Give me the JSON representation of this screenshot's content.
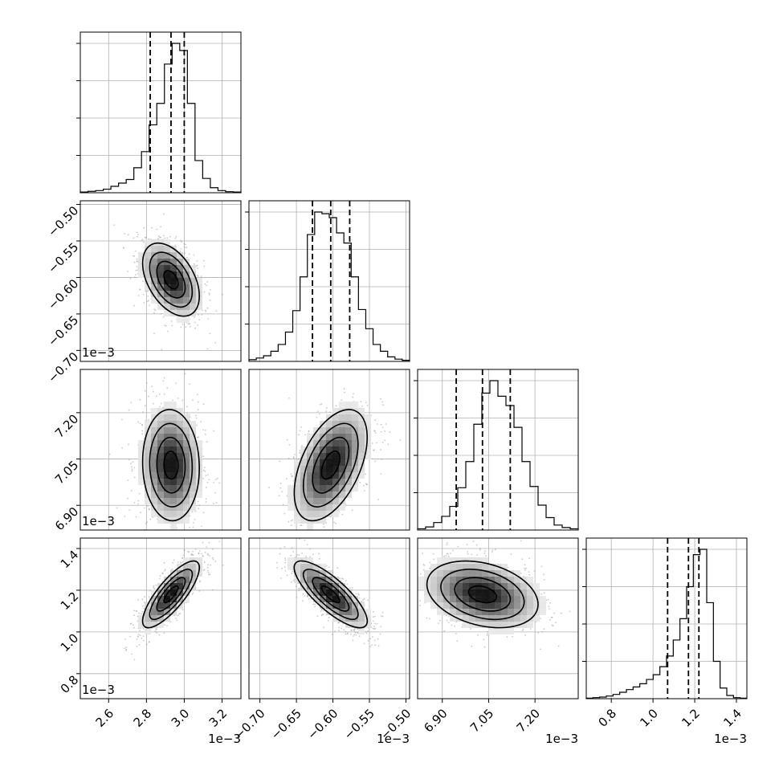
{
  "chart_data": {
    "type": "corner",
    "grid": true,
    "parameters": [
      {
        "ticks": [
          "2.6",
          "2.8",
          "3.0",
          "3.2"
        ],
        "tick_values": [
          0.0026,
          0.0028,
          0.003,
          0.0032
        ],
        "range": [
          0.00245,
          0.0033
        ],
        "offset_text": "1e−3",
        "quantiles": [
          0.00282,
          0.00293,
          0.003
        ],
        "hist_bins": [
          0.00245,
          0.0033
        ],
        "hist_counts": [
          2,
          4,
          6,
          10,
          18,
          27,
          37,
          70,
          115,
          190,
          250,
          360,
          418,
          398,
          250,
          90,
          40,
          14,
          6,
          3,
          2
        ],
        "mean": 0.00293,
        "sd": 7.5e-05
      },
      {
        "ticks": [
          "−0.70",
          "−0.65",
          "−0.60",
          "−0.55",
          "−0.50"
        ],
        "tick_values": [
          -0.0007,
          -0.00065,
          -0.0006,
          -0.00055,
          -0.0005
        ],
        "range": [
          -0.000715,
          -0.000495
        ],
        "offset_text": "1e−3",
        "quantiles": [
          -0.000628,
          -0.000603,
          -0.000577
        ],
        "hist_counts": [
          3,
          6,
          10,
          18,
          30,
          52,
          90,
          150,
          225,
          265,
          262,
          255,
          228,
          210,
          150,
          92,
          58,
          30,
          18,
          8,
          4,
          2
        ],
        "mean": -0.000603,
        "sd": 2.5e-05
      },
      {
        "ticks": [
          "6.90",
          "7.05",
          "7.20"
        ],
        "tick_values": [
          0.0069,
          0.00705,
          0.0072
        ],
        "range": [
          0.00682,
          0.00734
        ],
        "offset_text": "1e−3",
        "quantiles": [
          0.006945,
          0.00703,
          0.00712
        ],
        "hist_counts": [
          2,
          5,
          12,
          22,
          38,
          68,
          110,
          170,
          220,
          240,
          215,
          200,
          165,
          110,
          70,
          40,
          20,
          8,
          4,
          2
        ],
        "mean": 0.00703,
        "sd": 9e-05
      },
      {
        "ticks": [
          "0.8",
          "1.0",
          "1.2",
          "1.4"
        ],
        "tick_values": [
          0.0008,
          0.001,
          0.0012,
          0.0014
        ],
        "range": [
          0.00068,
          0.00145
        ],
        "offset_text": "1e−3",
        "quantiles": [
          0.00107,
          0.00117,
          0.00122
        ],
        "hist_counts": [
          1,
          2,
          3,
          5,
          8,
          12,
          17,
          22,
          28,
          36,
          45,
          60,
          80,
          110,
          150,
          210,
          270,
          280,
          180,
          70,
          20,
          6,
          2,
          1
        ],
        "mean": 0.00118,
        "sd": 8e-05
      }
    ],
    "correlations": {
      "1_0": -0.45,
      "2_0": -0.05,
      "2_1": 0.5,
      "3_0": 0.8,
      "3_1": -0.8,
      "3_2": -0.3
    }
  },
  "colors": {
    "contour": "#000000",
    "points": "#9a9a9a",
    "density_dark": "#000000",
    "density_light": "#ffffff",
    "grid": "#b0b0b0"
  }
}
